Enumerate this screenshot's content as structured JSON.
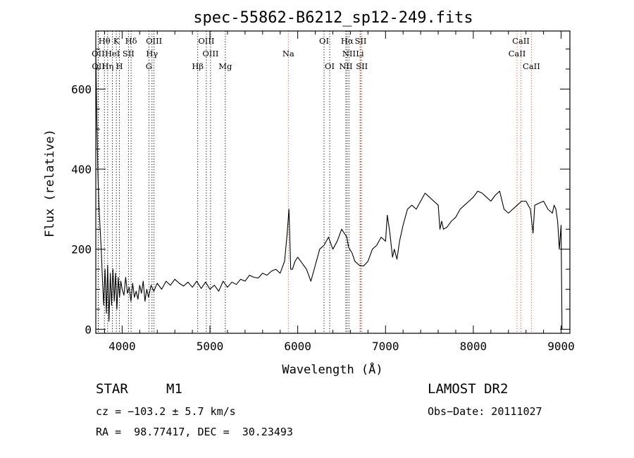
{
  "chart_data": {
    "type": "line",
    "title": "spec-55862-B6212_sp12-249.fits",
    "xlabel": "Wavelength (Å)",
    "ylabel": "Flux (relative)",
    "xlim": [
      3700,
      9100
    ],
    "ylim": [
      -10,
      745
    ],
    "x_ticks": [
      "4000",
      "5000",
      "6000",
      "7000",
      "8000",
      "9000"
    ],
    "x_tick_values": [
      4000,
      5000,
      6000,
      7000,
      8000,
      9000
    ],
    "y_ticks": [
      "0",
      "200",
      "400",
      "600"
    ],
    "y_tick_values": [
      0,
      200,
      400,
      600
    ],
    "grid": false,
    "series": [
      {
        "x": [
          3700,
          3712,
          3725,
          3738,
          3750,
          3762,
          3775,
          3790,
          3805,
          3820,
          3835,
          3850,
          3865,
          3880,
          3895,
          3910,
          3925,
          3940,
          3955,
          3970,
          3985,
          4000,
          4020,
          4040,
          4060,
          4080,
          4100,
          4120,
          4140,
          4160,
          4180,
          4200,
          4220,
          4240,
          4260,
          4280,
          4300,
          4330,
          4360,
          4400,
          4450,
          4500,
          4550,
          4600,
          4650,
          4700,
          4750,
          4800,
          4850,
          4900,
          4950,
          5000,
          5050,
          5100,
          5150,
          5200,
          5250,
          5300,
          5350,
          5400,
          5450,
          5500,
          5550,
          5600,
          5650,
          5700,
          5750,
          5800,
          5850,
          5880,
          5900,
          5920,
          5940,
          5955,
          5970,
          6000,
          6050,
          6100,
          6150,
          6200,
          6250,
          6300,
          6350,
          6400,
          6450,
          6500,
          6530,
          6560,
          6580,
          6620,
          6650,
          6700,
          6750,
          6800,
          6850,
          6900,
          6950,
          7000,
          7020,
          7050,
          7080,
          7100,
          7130,
          7160,
          7200,
          7250,
          7300,
          7350,
          7400,
          7450,
          7500,
          7550,
          7600,
          7620,
          7640,
          7660,
          7700,
          7750,
          7800,
          7850,
          7900,
          7950,
          8000,
          8050,
          8100,
          8150,
          8200,
          8250,
          8300,
          8350,
          8400,
          8450,
          8500,
          8550,
          8600,
          8650,
          8680,
          8700,
          8750,
          8800,
          8850,
          8900,
          8920,
          8940,
          8960,
          8980,
          9000,
          9010
        ],
        "y": [
          690,
          520,
          380,
          300,
          250,
          200,
          130,
          60,
          150,
          40,
          160,
          20,
          140,
          60,
          150,
          70,
          140,
          50,
          130,
          80,
          120,
          100,
          85,
          130,
          90,
          105,
          70,
          115,
          80,
          95,
          75,
          110,
          90,
          120,
          70,
          100,
          80,
          110,
          95,
          115,
          100,
          120,
          110,
          125,
          115,
          108,
          118,
          105,
          120,
          102,
          118,
          100,
          110,
          95,
          120,
          105,
          118,
          112,
          125,
          120,
          135,
          130,
          128,
          140,
          135,
          145,
          150,
          140,
          170,
          240,
          300,
          150,
          150,
          160,
          170,
          180,
          165,
          150,
          120,
          160,
          200,
          210,
          230,
          200,
          220,
          250,
          240,
          230,
          205,
          190,
          170,
          160,
          158,
          170,
          200,
          210,
          230,
          220,
          285,
          240,
          180,
          200,
          175,
          220,
          260,
          300,
          310,
          300,
          320,
          340,
          330,
          320,
          310,
          250,
          270,
          250,
          255,
          270,
          280,
          300,
          310,
          320,
          330,
          345,
          340,
          330,
          320,
          335,
          345,
          300,
          290,
          300,
          310,
          320,
          320,
          300,
          240,
          310,
          315,
          320,
          300,
          290,
          310,
          300,
          270,
          200,
          260,
          0
        ]
      }
    ],
    "line_labels": [
      {
        "text": "Hθ",
        "row": 1,
        "x": 3798
      },
      {
        "text": "K",
        "row": 1,
        "x": 3934
      },
      {
        "text": "Hδ",
        "row": 1,
        "x": 4102
      },
      {
        "text": "OIII",
        "row": 1,
        "x": 4363
      },
      {
        "text": "OIII",
        "row": 1,
        "x": 4959
      },
      {
        "text": "OI",
        "row": 1,
        "x": 6300
      },
      {
        "text": "Hα",
        "row": 1,
        "x": 6563
      },
      {
        "text": "SII",
        "row": 1,
        "x": 6717
      },
      {
        "text": "CaII",
        "row": 1,
        "x": 8542
      },
      {
        "text": "OII",
        "row": 2,
        "x": 3727
      },
      {
        "text": "HeI",
        "row": 2,
        "x": 3889
      },
      {
        "text": "SII",
        "row": 2,
        "x": 4072
      },
      {
        "text": "Hγ",
        "row": 2,
        "x": 4340
      },
      {
        "text": "OIII",
        "row": 2,
        "x": 5007
      },
      {
        "text": "Na",
        "row": 2,
        "x": 5893
      },
      {
        "text": "NII",
        "row": 2,
        "x": 6584
      },
      {
        "text": "Li",
        "row": 2,
        "x": 6708
      },
      {
        "text": "CaII",
        "row": 2,
        "x": 8498
      },
      {
        "text": "OII",
        "row": 3,
        "x": 3729
      },
      {
        "text": "Hη",
        "row": 3,
        "x": 3835
      },
      {
        "text": "H",
        "row": 3,
        "x": 3969
      },
      {
        "text": "G",
        "row": 3,
        "x": 4305
      },
      {
        "text": "Hβ",
        "row": 3,
        "x": 4861
      },
      {
        "text": "Mg",
        "row": 3,
        "x": 5175
      },
      {
        "text": "OI",
        "row": 3,
        "x": 6364
      },
      {
        "text": "NII",
        "row": 3,
        "x": 6548
      },
      {
        "text": "SII",
        "row": 3,
        "x": 6731
      },
      {
        "text": "CaII",
        "row": 3,
        "x": 8662
      }
    ],
    "line_markers": [
      {
        "x": 3727,
        "color": "#000000"
      },
      {
        "x": 3729,
        "color": "#000000"
      },
      {
        "x": 3798,
        "color": "#000000"
      },
      {
        "x": 3835,
        "color": "#000000"
      },
      {
        "x": 3889,
        "color": "#000000"
      },
      {
        "x": 3934,
        "color": "#000000"
      },
      {
        "x": 3969,
        "color": "#000000"
      },
      {
        "x": 4072,
        "color": "#000000"
      },
      {
        "x": 4102,
        "color": "#000000"
      },
      {
        "x": 4305,
        "color": "#000000"
      },
      {
        "x": 4340,
        "color": "#000000"
      },
      {
        "x": 4363,
        "color": "#000000"
      },
      {
        "x": 4861,
        "color": "#000000"
      },
      {
        "x": 4959,
        "color": "#000000"
      },
      {
        "x": 5007,
        "color": "#000000"
      },
      {
        "x": 5175,
        "color": "#000000"
      },
      {
        "x": 5893,
        "color": "#e05050"
      },
      {
        "x": 6300,
        "color": "#000000"
      },
      {
        "x": 6364,
        "color": "#000000"
      },
      {
        "x": 6548,
        "color": "#000000"
      },
      {
        "x": 6563,
        "color": "#000000"
      },
      {
        "x": 6584,
        "color": "#000000"
      },
      {
        "x": 6708,
        "color": "#e05050"
      },
      {
        "x": 6717,
        "color": "#000000"
      },
      {
        "x": 6731,
        "color": "#e05050"
      },
      {
        "x": 8498,
        "color": "#e05050"
      },
      {
        "x": 8542,
        "color": "#e05050"
      },
      {
        "x": 8662,
        "color": "#e05050"
      }
    ]
  },
  "info": {
    "class_label": "STAR",
    "subclass": "M1",
    "redshift": "cz = −103.2 ± 5.7 km/s",
    "coords": "RA =  98.77417, DEC =  30.23493",
    "survey": "LAMOST DR2",
    "obs_date": "Obs−Date: 20111027"
  },
  "colors": {
    "line": "#000000",
    "marker_default": "#000000",
    "marker_red": "#e05050"
  }
}
